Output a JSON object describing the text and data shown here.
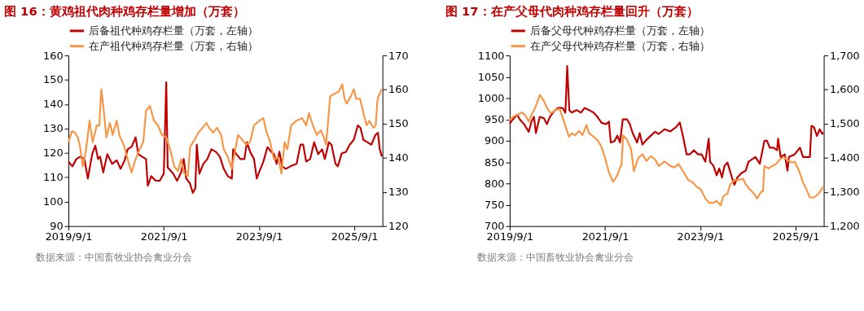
{
  "chart_data": [
    {
      "type": "line",
      "title": "图 16：黄鸡祖代肉种鸡存栏量增加（万套）",
      "legend": "top",
      "xlim": [
        "2019-09-01",
        "2026-04-05"
      ],
      "xticks": [
        {
          "value": "2019-09-01",
          "label": "2019/9/1"
        },
        {
          "value": "2021-09-01",
          "label": "2021/9/1"
        },
        {
          "value": "2023-09-01",
          "label": "2023/9/1"
        },
        {
          "value": "2025-09-01",
          "label": "2025/9/1"
        }
      ],
      "ylim": [
        90,
        160
      ],
      "yticks": [
        90,
        100,
        110,
        120,
        130,
        140,
        150,
        160
      ],
      "y2lim": [
        120,
        170
      ],
      "y2ticks": [
        120,
        130,
        140,
        150,
        160,
        170
      ],
      "annotations": [
        "数据来源：中国畜牧业协会禽业分会"
      ],
      "series": [
        {
          "name": "后备祖代种鸡存栏量（万套，左轴）",
          "color": "#c00000",
          "axis": "y",
          "x": [
            "2019-09-01",
            "2019-10-01",
            "2019-11-01",
            "2019-12-01",
            "2020-01-01",
            "2020-01-28",
            "2020-03-01",
            "2020-03-25",
            "2020-04-15",
            "2020-05-01",
            "2020-05-25",
            "2020-06-25",
            "2020-08-01",
            "2020-09-05",
            "2020-10-05",
            "2020-11-05",
            "2020-11-28",
            "2020-12-28",
            "2021-01-28",
            "2021-02-18",
            "2021-03-18",
            "2021-04-18",
            "2021-05-01",
            "2021-05-28",
            "2021-07-01",
            "2021-08-01",
            "2021-09-01",
            "2021-09-20",
            "2021-10-01",
            "2021-10-10",
            "2021-11-12",
            "2021-12-12",
            "2022-01-12",
            "2022-02-01",
            "2022-02-20",
            "2022-03-20",
            "2022-04-12",
            "2022-05-01",
            "2022-05-12",
            "2022-06-01",
            "2022-07-01",
            "2022-08-01",
            "2022-09-01",
            "2022-10-05",
            "2022-11-05",
            "2022-12-05",
            "2023-01-05",
            "2023-02-05",
            "2023-02-15",
            "2023-03-12",
            "2023-04-12",
            "2023-05-12",
            "2023-06-01",
            "2023-06-25",
            "2023-07-25",
            "2023-08-15",
            "2023-09-05",
            "2023-10-05",
            "2023-11-05",
            "2023-12-05",
            "2023-12-25",
            "2024-01-15",
            "2024-02-05",
            "2024-02-25",
            "2024-03-25",
            "2024-04-28",
            "2024-06-15",
            "2024-07-15",
            "2024-08-05",
            "2024-08-28",
            "2024-09-28",
            "2024-10-28",
            "2024-11-28",
            "2024-12-28",
            "2025-01-18",
            "2025-02-18",
            "2025-03-10",
            "2025-04-10",
            "2025-04-28",
            "2025-05-28",
            "2025-06-28",
            "2025-07-28",
            "2025-08-28",
            "2025-09-28",
            "2025-10-18",
            "2025-11-10",
            "2025-12-10",
            "2026-01-10",
            "2026-02-10",
            "2026-03-01",
            "2026-03-15",
            "2026-04-01"
          ],
          "values": [
            116.5,
            114.5,
            117.5,
            118.5,
            117.5,
            109.5,
            119.5,
            123,
            117.5,
            118.5,
            112,
            119.5,
            115.5,
            117,
            113.5,
            117,
            121.5,
            122.5,
            126.4,
            119.5,
            118.5,
            117.5,
            106.6,
            110.5,
            108.6,
            108.6,
            111.5,
            149,
            114,
            113.5,
            111.5,
            108.6,
            112,
            117.5,
            109.5,
            107.6,
            103.6,
            105.6,
            123.4,
            111.5,
            115.5,
            117.5,
            121.5,
            120.5,
            118.5,
            113.5,
            110.5,
            109.5,
            121.5,
            119.5,
            117.5,
            117.5,
            124.4,
            120.5,
            117.5,
            109.5,
            112.5,
            116.5,
            122.4,
            120.4,
            119.5,
            115.5,
            120.5,
            114.5,
            113.5,
            114.5,
            115.5,
            123.4,
            123.4,
            116.5,
            117.5,
            124.4,
            119.5,
            121.5,
            117.5,
            124.4,
            123.4,
            115.5,
            114.5,
            119.9,
            120.4,
            123.4,
            125.4,
            131.3,
            130.3,
            125.4,
            124.4,
            123.4,
            127.4,
            128.3,
            121.5,
            118.5
          ]
        },
        {
          "name": "在产祖代种鸡存栏量（万套，右轴）",
          "color": "#f79646",
          "axis": "y2",
          "x": [
            "2019-09-01",
            "2019-09-28",
            "2019-10-20",
            "2019-11-12",
            "2019-11-28",
            "2019-12-20",
            "2020-01-12",
            "2020-02-10",
            "2020-03-05",
            "2020-04-05",
            "2020-04-25",
            "2020-05-10",
            "2020-05-25",
            "2020-06-18",
            "2020-07-15",
            "2020-08-05",
            "2020-09-05",
            "2020-09-25",
            "2020-10-28",
            "2020-11-28",
            "2020-12-28",
            "2021-01-28",
            "2021-02-28",
            "2021-03-28",
            "2021-04-18",
            "2021-05-18",
            "2021-06-18",
            "2021-07-18",
            "2021-08-18",
            "2021-09-20",
            "2021-10-20",
            "2021-11-20",
            "2021-12-20",
            "2022-01-12",
            "2022-02-05",
            "2022-03-05",
            "2022-03-22",
            "2022-04-25",
            "2022-05-25",
            "2022-06-25",
            "2022-07-25",
            "2022-08-15",
            "2022-09-15",
            "2022-10-15",
            "2022-11-15",
            "2022-12-05",
            "2023-01-05",
            "2023-02-05",
            "2023-02-25",
            "2023-03-25",
            "2023-04-25",
            "2023-05-25",
            "2023-06-25",
            "2023-07-25",
            "2023-09-05",
            "2023-10-05",
            "2023-10-25",
            "2023-11-25",
            "2023-12-25",
            "2024-01-25",
            "2024-02-20",
            "2024-03-15",
            "2024-04-05",
            "2024-05-05",
            "2024-06-15",
            "2024-07-28",
            "2024-08-28",
            "2024-09-18",
            "2024-10-18",
            "2024-11-18",
            "2024-12-18",
            "2025-01-10",
            "2025-01-28",
            "2025-02-28",
            "2025-03-28",
            "2025-05-05",
            "2025-06-01",
            "2025-06-18",
            "2025-07-05",
            "2025-08-05",
            "2025-08-28",
            "2025-09-15",
            "2025-10-15",
            "2025-11-15",
            "2025-12-05",
            "2025-12-25",
            "2026-01-25",
            "2026-02-12",
            "2026-02-25",
            "2026-03-05",
            "2026-04-01"
          ],
          "values": [
            144.6,
            147.8,
            147.4,
            146,
            143.5,
            137.5,
            141.8,
            150.9,
            144.6,
            149.5,
            149.5,
            160.1,
            155.2,
            146,
            150.2,
            146.7,
            150.9,
            146.7,
            143.9,
            139.6,
            135.7,
            139.6,
            142.5,
            144.6,
            153.8,
            155.2,
            150.9,
            149.5,
            146.7,
            146,
            142.5,
            137.5,
            136.1,
            139.6,
            135.4,
            134.7,
            143.2,
            145.3,
            147.4,
            148.8,
            150.2,
            148.8,
            147.4,
            148.8,
            146.7,
            142.5,
            140.3,
            136.8,
            141.1,
            146.7,
            145.3,
            143.9,
            144.6,
            149.5,
            150.9,
            151.6,
            148.1,
            144.6,
            139.6,
            140.3,
            135.4,
            144.6,
            142.5,
            149.5,
            150.9,
            151.6,
            149.5,
            153.1,
            149.5,
            146.7,
            148.1,
            146,
            143.9,
            158,
            158.7,
            159.4,
            161.5,
            157.3,
            155.9,
            158,
            160.1,
            157.3,
            157.3,
            152.3,
            149.5,
            150.9,
            148.8,
            149.5,
            156.6,
            158,
            160.1
          ]
        }
      ]
    },
    {
      "type": "line",
      "title": "图 17：在产父母代肉种鸡存栏量回升（万套）",
      "legend": "top",
      "xlim": [
        "2019-09-01",
        "2026-04-05"
      ],
      "xticks": [
        {
          "value": "2019-09-01",
          "label": "2019/9/1"
        },
        {
          "value": "2021-09-01",
          "label": "2021/9/1"
        },
        {
          "value": "2023-09-01",
          "label": "2023/9/1"
        },
        {
          "value": "2025-09-01",
          "label": "2025/9/1"
        }
      ],
      "ylim": [
        700,
        1100
      ],
      "yticks": [
        700,
        750,
        800,
        850,
        900,
        950,
        1000,
        1050,
        1100
      ],
      "y2lim": [
        1200,
        1700
      ],
      "y2ticks": [
        {
          "value": 1200,
          "label": "1,200"
        },
        {
          "value": 1300,
          "label": "1,300"
        },
        {
          "value": 1400,
          "label": "1,400"
        },
        {
          "value": 1500,
          "label": "1,500"
        },
        {
          "value": 1600,
          "label": "1,600"
        },
        {
          "value": 1700,
          "label": "1,700"
        }
      ],
      "annotations": [
        "数据来源：中国畜牧业协会禽业分会"
      ],
      "series": [
        {
          "name": "后备父母代种鸡存栏量（万套，左轴）",
          "color": "#c00000",
          "axis": "y",
          "x": [
            "2019-09-01",
            "2019-09-25",
            "2019-10-28",
            "2019-11-18",
            "2019-12-20",
            "2020-01-25",
            "2020-02-15",
            "2020-03-05",
            "2020-03-20",
            "2020-04-18",
            "2020-05-20",
            "2020-06-12",
            "2020-07-05",
            "2020-08-05",
            "2020-09-05",
            "2020-10-10",
            "2020-11-01",
            "2020-11-15",
            "2020-12-01",
            "2020-12-20",
            "2021-01-25",
            "2021-02-28",
            "2021-03-28",
            "2021-05-01",
            "2021-06-05",
            "2021-07-05",
            "2021-08-05",
            "2021-09-10",
            "2021-10-01",
            "2021-10-15",
            "2021-11-12",
            "2021-12-05",
            "2021-12-25",
            "2022-01-15",
            "2022-02-18",
            "2022-03-10",
            "2022-04-01",
            "2022-05-05",
            "2022-05-25",
            "2022-06-15",
            "2022-07-15",
            "2022-08-18",
            "2022-09-20",
            "2022-10-18",
            "2022-12-01",
            "2023-01-15",
            "2023-02-28",
            "2023-03-28",
            "2023-04-18",
            "2023-05-20",
            "2023-06-12",
            "2023-07-15",
            "2023-08-15",
            "2023-09-12",
            "2023-10-10",
            "2023-11-05",
            "2023-11-15",
            "2023-12-12",
            "2024-01-05",
            "2024-01-25",
            "2024-02-15",
            "2024-03-05",
            "2024-03-28",
            "2024-05-01",
            "2024-05-20",
            "2024-06-12",
            "2024-07-12",
            "2024-08-15",
            "2024-09-05",
            "2024-10-05",
            "2024-10-28",
            "2024-12-01",
            "2025-01-05",
            "2025-01-25",
            "2025-02-15",
            "2025-03-15",
            "2025-04-12",
            "2025-04-20",
            "2025-05-10",
            "2025-06-10",
            "2025-07-01",
            "2025-07-12",
            "2025-08-25",
            "2025-10-05",
            "2025-10-28",
            "2025-12-01",
            "2025-12-20",
            "2026-01-01",
            "2026-01-20",
            "2026-02-12",
            "2026-03-05",
            "2026-03-25",
            "2026-04-01"
          ],
          "values": [
            940,
            950,
            961,
            950,
            939,
            921,
            945,
            956,
            918,
            956,
            953,
            939,
            956,
            969,
            977,
            977,
            966,
            1075,
            972,
            966,
            972,
            966,
            977,
            972,
            966,
            956,
            942,
            939,
            945,
            896,
            899,
            912,
            896,
            950,
            950,
            939,
            918,
            896,
            918,
            891,
            902,
            912,
            921,
            916,
            927,
            922,
            932,
            943,
            916,
            868,
            868,
            878,
            868,
            868,
            851,
            905,
            851,
            841,
            819,
            835,
            814,
            841,
            849,
            814,
            797,
            814,
            824,
            830,
            851,
            857,
            862,
            846,
            900,
            900,
            884,
            884,
            878,
            905,
            862,
            868,
            830,
            862,
            868,
            884,
            862,
            862,
            862,
            935,
            932,
            911,
            927,
            916,
            920
          ]
        },
        {
          "name": "在产父母代种鸡存栏量（万套，右轴）",
          "color": "#f79646",
          "axis": "y2",
          "x": [
            "2019-09-01",
            "2019-09-25",
            "2019-10-28",
            "2019-12-05",
            "2020-01-01",
            "2020-01-25",
            "2020-02-15",
            "2020-03-15",
            "2020-04-18",
            "2020-05-20",
            "2020-06-12",
            "2020-07-12",
            "2020-08-15",
            "2020-09-18",
            "2020-10-10",
            "2020-11-01",
            "2020-11-28",
            "2020-12-20",
            "2021-01-15",
            "2021-02-15",
            "2021-03-12",
            "2021-04-12",
            "2021-05-01",
            "2021-06-05",
            "2021-07-05",
            "2021-08-05",
            "2021-08-28",
            "2021-10-01",
            "2021-11-01",
            "2021-11-28",
            "2021-12-25",
            "2022-01-05",
            "2022-01-18",
            "2022-02-18",
            "2022-03-20",
            "2022-04-10",
            "2022-05-12",
            "2022-06-15",
            "2022-07-15",
            "2022-08-18",
            "2022-09-20",
            "2022-10-18",
            "2022-12-01",
            "2023-01-15",
            "2023-02-15",
            "2023-03-18",
            "2023-05-01",
            "2023-06-01",
            "2023-07-05",
            "2023-08-05",
            "2023-09-05",
            "2023-10-10",
            "2023-11-10",
            "2023-12-12",
            "2024-01-05",
            "2024-02-05",
            "2024-02-25",
            "2024-03-28",
            "2024-04-18",
            "2024-05-05",
            "2024-05-20",
            "2024-06-20",
            "2024-07-25",
            "2024-08-15",
            "2024-09-15",
            "2024-10-18",
            "2024-11-10",
            "2024-12-12",
            "2024-12-25",
            "2025-01-05",
            "2025-02-05",
            "2025-03-05",
            "2025-04-05",
            "2025-05-05",
            "2025-06-01",
            "2025-07-01",
            "2025-08-05",
            "2025-08-25",
            "2025-09-28",
            "2025-10-28",
            "2025-12-01",
            "2025-12-20",
            "2026-01-20",
            "2026-02-25",
            "2026-03-25",
            "2026-04-01"
          ],
          "values": [
            1509,
            1520,
            1526,
            1533,
            1523,
            1506,
            1526,
            1547,
            1584,
            1567,
            1547,
            1530,
            1540,
            1543,
            1520,
            1493,
            1462,
            1472,
            1466,
            1479,
            1466,
            1496,
            1472,
            1462,
            1452,
            1432,
            1405,
            1357,
            1330,
            1344,
            1371,
            1378,
            1466,
            1452,
            1425,
            1361,
            1398,
            1411,
            1391,
            1405,
            1395,
            1376,
            1389,
            1376,
            1372,
            1382,
            1355,
            1335,
            1328,
            1315,
            1308,
            1281,
            1268,
            1268,
            1274,
            1261,
            1288,
            1295,
            1322,
            1328,
            1335,
            1335,
            1339,
            1322,
            1308,
            1295,
            1281,
            1301,
            1301,
            1376,
            1369,
            1376,
            1382,
            1396,
            1403,
            1393,
            1386,
            1389,
            1362,
            1328,
            1301,
            1284,
            1284,
            1295,
            1311,
            1315
          ]
        }
      ]
    }
  ]
}
